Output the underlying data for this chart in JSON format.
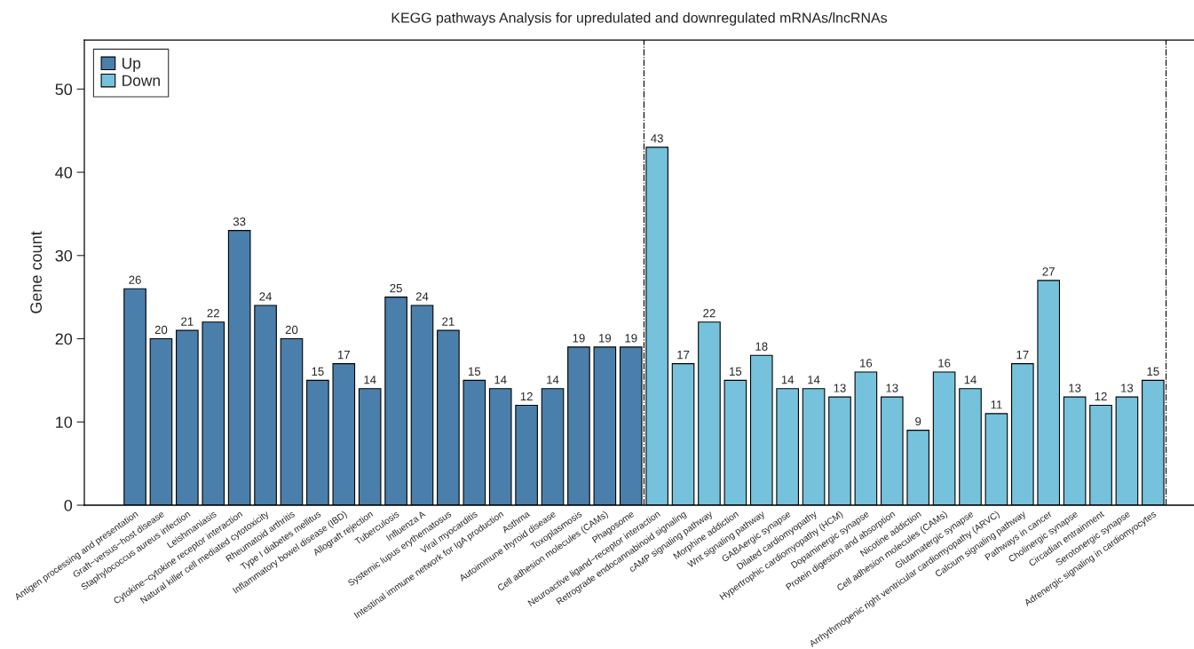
{
  "chart_data": {
    "type": "bar",
    "title": "KEGG pathways Analysis for upredulated and downregulated mRNAs/lncRNAs",
    "ylabel": "Gene count",
    "categories": [
      "Antigen processing and presentation",
      "Graft−versus−host disease",
      "Staphylococcus aureus infection",
      "Leishmaniasis",
      "Cytokine−cytokine receptor interaction",
      "Natural killer cell mediated cytotoxicity",
      "Rheumatoid arthritis",
      "Type I diabetes mellitus",
      "Inflammatory bowel disease (IBD)",
      "Allograft rejection",
      "Tuberculosis",
      "Influenza A",
      "Systemic lupus erythematosus",
      "Viral myocarditis",
      "Intestinal immune network for IgA production",
      "Asthma",
      "Autoimmune thyroid disease",
      "Toxoplasmosis",
      "Cell adhesion molecules (CAMs)",
      "Phagosome",
      "Neuroactive ligand−receptor interaction",
      "Retrograde endocannabinoid signaling",
      "cAMP signaling pathway",
      "Morphine addiction",
      "Wnt signaling pathway",
      "GABAergic synapse",
      "Dilated cardiomyopathy",
      "Hypertrophic cardiomyopathy (HCM)",
      "Dopaminergic synapse",
      "Protein digestion and absorption",
      "Nicotine addiction",
      "Cell adhesion molecules (CAMs)",
      "Glutamatergic synapse",
      "Arrhythmogenic right ventricular cardiomyopathy (ARVC)",
      "Calcium signaling pathway",
      "Pathways in cancer",
      "Cholinergic synapse",
      "Circadian entrainment",
      "Serotonergic synapse",
      "Adrenergic signaling in cardiomyocytes"
    ],
    "series": [
      {
        "name": "Up",
        "color": "#4a7fab",
        "values": [
          26,
          20,
          21,
          22,
          33,
          24,
          20,
          15,
          17,
          14,
          25,
          24,
          21,
          15,
          14,
          12,
          14,
          19,
          19,
          19,
          null,
          null,
          null,
          null,
          null,
          null,
          null,
          null,
          null,
          null,
          null,
          null,
          null,
          null,
          null,
          null,
          null,
          null,
          null,
          null
        ]
      },
      {
        "name": "Down",
        "color": "#76c2dc",
        "values": [
          null,
          null,
          null,
          null,
          null,
          null,
          null,
          null,
          null,
          null,
          null,
          null,
          null,
          null,
          null,
          null,
          null,
          null,
          null,
          null,
          43,
          17,
          22,
          15,
          18,
          14,
          14,
          13,
          16,
          13,
          9,
          16,
          14,
          11,
          17,
          27,
          13,
          12,
          13,
          15
        ]
      }
    ],
    "ylim": [
      0,
      55.9
    ],
    "yticks": [
      0,
      10,
      20,
      30,
      40,
      50
    ],
    "data_labels": true,
    "legend": "top left",
    "grid": false
  }
}
